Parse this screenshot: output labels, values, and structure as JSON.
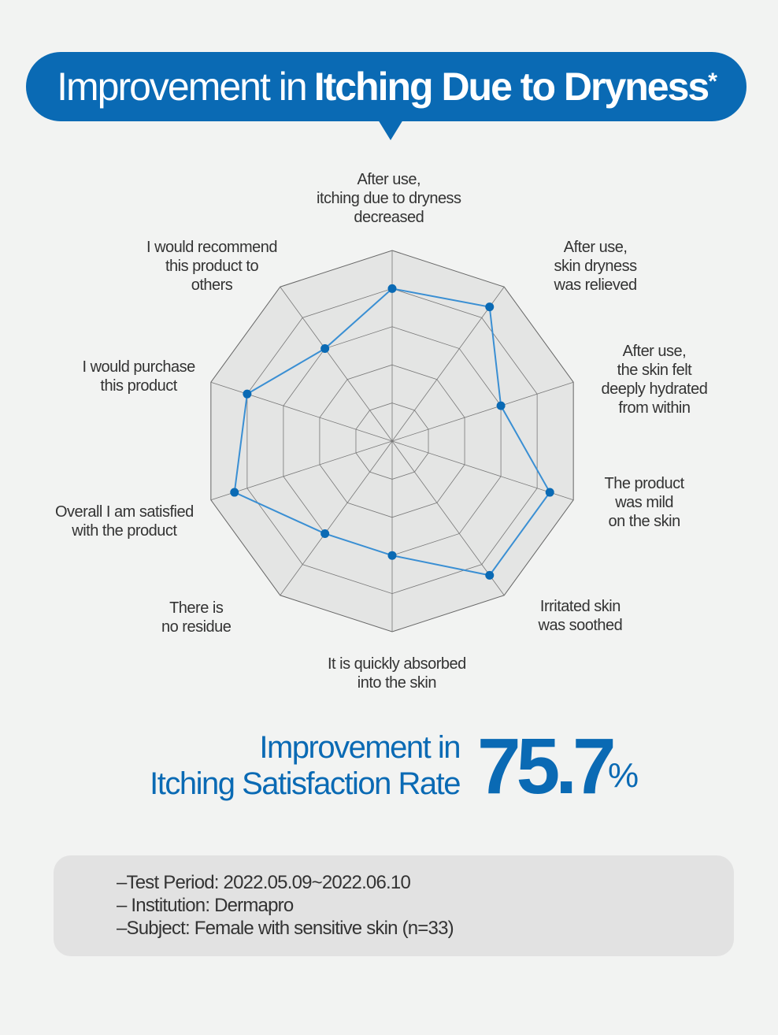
{
  "header": {
    "title_light": "Improvement in",
    "title_bold": "Itching Due to Dryness",
    "title_mark": "*"
  },
  "chart_data": {
    "type": "radar",
    "axes": [
      "After use, itching due to dryness decreased",
      "After use, skin dryness was relieved",
      "After use, the skin felt deeply hydrated from within",
      "The product was mild on the skin",
      "Irritated skin was soothed",
      "It is quickly absorbed into the skin",
      "There is no residue",
      "Overall I am satisfied with the product",
      "I would purchase this product",
      "I would recommend this product to others"
    ],
    "axis_label_lines": [
      [
        "After use,",
        "itching due to dryness",
        "decreased"
      ],
      [
        "After use,",
        "skin dryness",
        "was relieved"
      ],
      [
        "After use,",
        "the skin felt",
        "deeply hydrated",
        "from within"
      ],
      [
        "The product",
        "was mild",
        "on the skin"
      ],
      [
        "Irritated skin",
        "was soothed"
      ],
      [
        "It is quickly absorbed",
        "into the skin"
      ],
      [
        "There is",
        "no residue"
      ],
      [
        "Overall I am satisfied",
        "with the product"
      ],
      [
        "I would purchase",
        "this product"
      ],
      [
        "I would recommend",
        "this product to",
        "others"
      ]
    ],
    "values": [
      0.8,
      0.87,
      0.6,
      0.87,
      0.87,
      0.6,
      0.6,
      0.87,
      0.8,
      0.6
    ],
    "range": [
      0,
      1
    ],
    "rings": 5,
    "grid": true,
    "line_color": "#3a8fd3",
    "point_color": "#0a6ab4"
  },
  "stat": {
    "label_line1": "Improvement in",
    "label_line2": "Itching Satisfaction Rate",
    "value": "75.7",
    "unit": "%"
  },
  "notes": [
    "–Test Period: 2022.05.09~2022.06.10",
    "– Institution: Dermapro",
    "–Subject: Female with sensitive skin (n=33)"
  ],
  "colors": {
    "brand_blue": "#0a6ab4",
    "background": "#f2f3f2",
    "notes_bg": "#e2e2e2"
  }
}
